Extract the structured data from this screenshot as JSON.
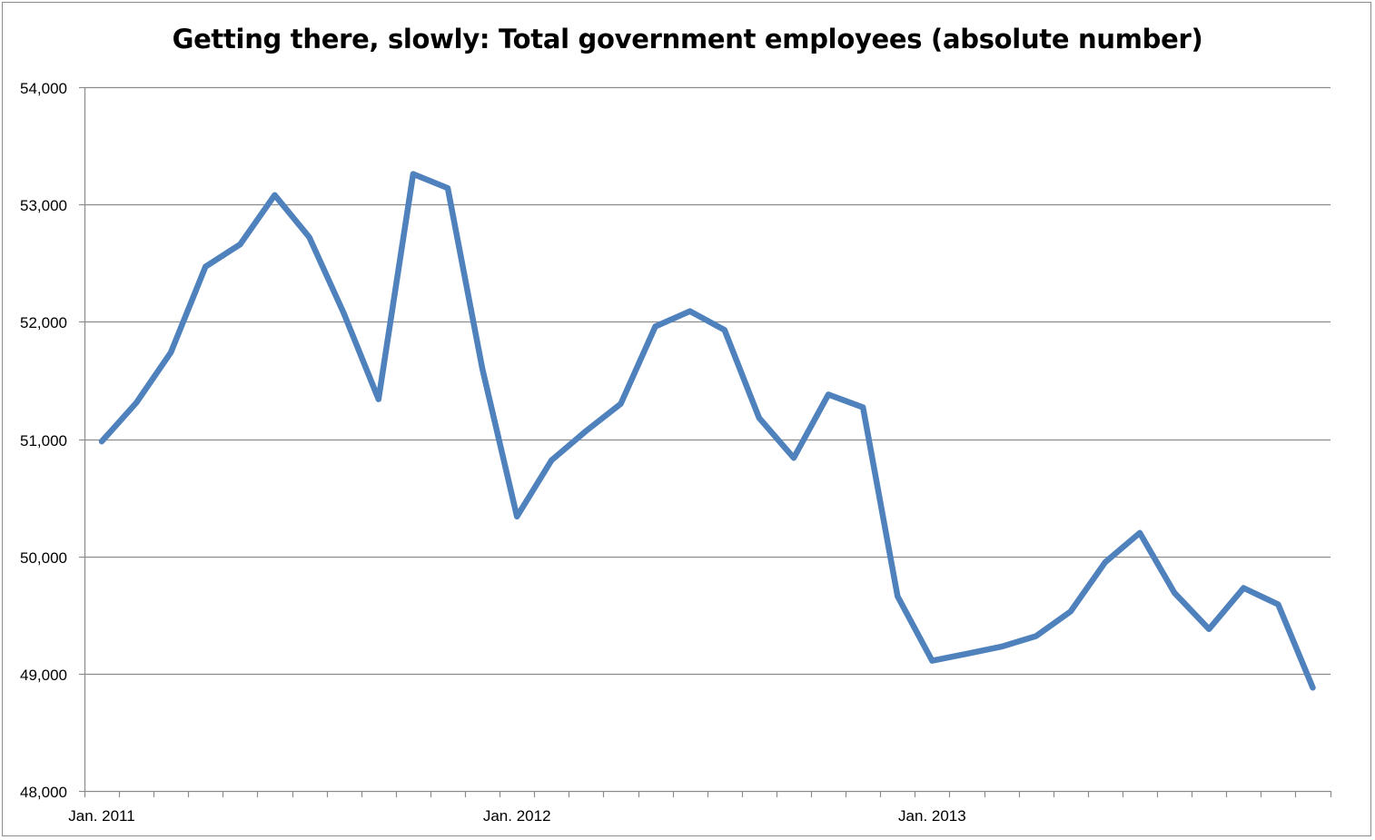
{
  "chart_data": {
    "type": "line",
    "title": "Getting there, slowly: Total government employees (absolute number)",
    "xlabel": "",
    "ylabel": "",
    "ylim": [
      48000,
      54000
    ],
    "y_ticks": [
      48000,
      49000,
      50000,
      51000,
      52000,
      53000,
      54000
    ],
    "y_tick_labels": [
      "48,000",
      "49,000",
      "50,000",
      "51,000",
      "52,000",
      "53,000",
      "54,000"
    ],
    "x_tick_labels": [
      {
        "label": "Jan. 2011",
        "index": 0
      },
      {
        "label": "Jan. 2012",
        "index": 12
      },
      {
        "label": "Jan. 2013",
        "index": 24
      }
    ],
    "grid": true,
    "legend": "none",
    "series_color": "#4f81bd",
    "series": [
      {
        "values": [
          50980,
          51310,
          51740,
          52470,
          52660,
          53080,
          52720,
          52070,
          51340,
          53260,
          53140,
          51600,
          50340,
          50820,
          51070,
          51300,
          51960,
          52090,
          51930,
          51180,
          50840,
          51380,
          51270,
          49660,
          49110,
          49170,
          49230,
          49320,
          49530,
          49950,
          50200,
          49690,
          49380,
          49730,
          49590,
          48880
        ]
      }
    ]
  }
}
